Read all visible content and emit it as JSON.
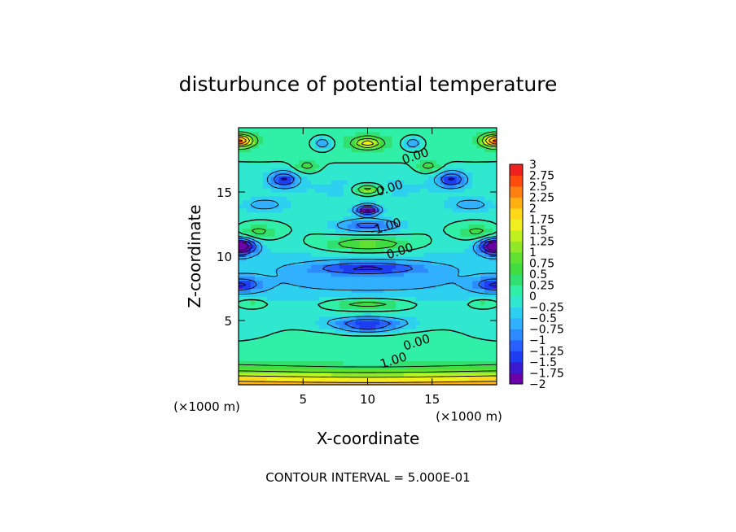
{
  "chart_data": {
    "type": "contour",
    "title": "disturbunce of potential temperature",
    "xlabel": "X-coordinate",
    "ylabel": "Z-coordinate",
    "x_units": "(×1000 m)",
    "y_units": "(×1000 m)",
    "footer": "CONTOUR INTERVAL = 5.000E-01",
    "xlim": [
      0,
      20
    ],
    "ylim": [
      0,
      20
    ],
    "x_ticks": [
      5,
      10,
      15
    ],
    "y_ticks": [
      5,
      10,
      15
    ],
    "contour_interval": 0.5,
    "contour_labels": [
      {
        "text": "0.00",
        "x": 13.8,
        "y": 17.5
      },
      {
        "text": "0.00",
        "x": 11.8,
        "y": 15.0
      },
      {
        "text": "-1.00",
        "x": 11.5,
        "y": 12.0
      },
      {
        "text": "0.00",
        "x": 12.6,
        "y": 10.1
      },
      {
        "text": "0.00",
        "x": 13.9,
        "y": 3.0
      },
      {
        "text": "1.00",
        "x": 12.1,
        "y": 1.6
      }
    ],
    "colorbar": {
      "min": -2,
      "max": 3,
      "tick_labels": [
        "3",
        "2.75",
        "2.5",
        "2.25",
        "2",
        "1.75",
        "1.5",
        "1.25",
        "1",
        "0.75",
        "0.5",
        "0.25",
        "0",
        "−0.25",
        "−0.5",
        "−0.75",
        "−1",
        "−1.25",
        "−1.5",
        "−1.75",
        "−2"
      ],
      "colors": [
        "#6a00a8",
        "#3a1ad0",
        "#1e3cf0",
        "#2860ff",
        "#2c8cff",
        "#30b0ff",
        "#2ed0f0",
        "#30e8d0",
        "#30f0a8",
        "#30e070",
        "#40dc40",
        "#60e030",
        "#90e828",
        "#c0f020",
        "#f0f020",
        "#ffd818",
        "#ffb010",
        "#ff8010",
        "#ff4c0c",
        "#f0201c"
      ]
    }
  }
}
